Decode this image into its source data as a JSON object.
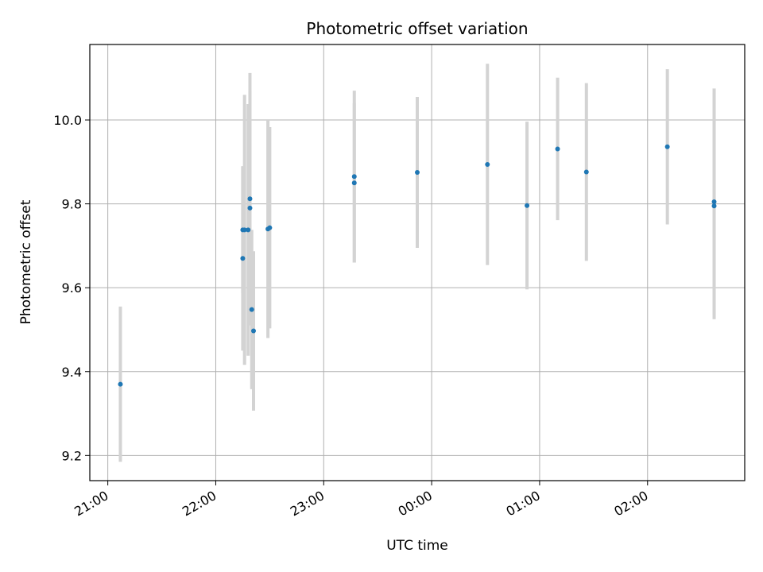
{
  "chart_data": {
    "type": "scatter",
    "title": "Photometric offset variation",
    "xlabel": "UTC time",
    "ylabel": "Photometric offset",
    "x_unit": "UTC time (HH:MM)",
    "xlim": [
      "20:50",
      "26:54"
    ],
    "ylim": [
      9.14,
      10.18
    ],
    "grid": true,
    "xticks": [
      {
        "t": "21:00",
        "label": "21:00"
      },
      {
        "t": "22:00",
        "label": "22:00"
      },
      {
        "t": "23:00",
        "label": "23:00"
      },
      {
        "t": "24:00",
        "label": "00:00"
      },
      {
        "t": "25:00",
        "label": "01:00"
      },
      {
        "t": "26:00",
        "label": "02:00"
      }
    ],
    "yticks": [
      9.2,
      9.4,
      9.6,
      9.8,
      10.0
    ],
    "point_color": "#1f77b4",
    "errorbar_color": "#d3d3d3",
    "points": [
      {
        "t": "21:07",
        "y": 9.37,
        "err": 0.185
      },
      {
        "t": "22:15",
        "y": 9.67,
        "err": 0.22
      },
      {
        "t": "22:15",
        "y": 9.738,
        "err": 0.15
      },
      {
        "t": "22:16",
        "y": 9.738,
        "err": 0.322
      },
      {
        "t": "22:18",
        "y": 9.738,
        "err": 0.3
      },
      {
        "t": "22:19",
        "y": 9.79,
        "err": 0.28
      },
      {
        "t": "22:19",
        "y": 9.812,
        "err": 0.3
      },
      {
        "t": "22:20",
        "y": 9.548,
        "err": 0.19
      },
      {
        "t": "22:21",
        "y": 9.497,
        "err": 0.19
      },
      {
        "t": "22:29",
        "y": 9.74,
        "err": 0.26
      },
      {
        "t": "22:30",
        "y": 9.743,
        "err": 0.24
      },
      {
        "t": "23:17",
        "y": 9.865,
        "err": 0.205
      },
      {
        "t": "23:17",
        "y": 9.85,
        "err": 0.19
      },
      {
        "t": "23:52",
        "y": 9.875,
        "err": 0.18
      },
      {
        "t": "00:31",
        "y": 9.894,
        "err": 0.24
      },
      {
        "t": "00:53",
        "y": 9.796,
        "err": 0.2
      },
      {
        "t": "01:10",
        "y": 9.931,
        "err": 0.17
      },
      {
        "t": "01:26",
        "y": 9.876,
        "err": 0.212
      },
      {
        "t": "02:11",
        "y": 9.936,
        "err": 0.185
      },
      {
        "t": "02:37",
        "y": 9.805,
        "err": 0.27
      },
      {
        "t": "02:37",
        "y": 9.795,
        "err": 0.27
      }
    ]
  }
}
